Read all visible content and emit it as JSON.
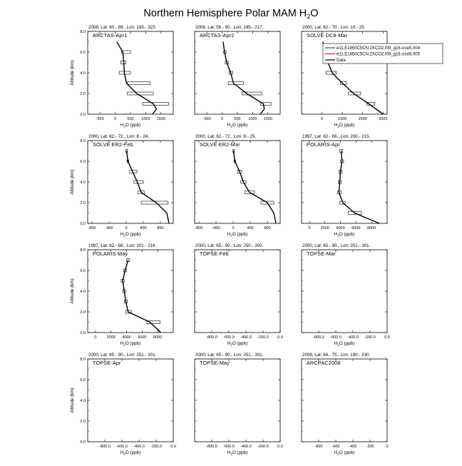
{
  "page": {
    "title_main": "Northern Hemisphere Polar MAM H",
    "title_sub": "2",
    "title_tail": "O"
  },
  "common": {
    "xlabel_pre": "H",
    "xlabel_sub": "2",
    "xlabel_post": "O (ppb)",
    "ylabel": "Altitude (km)",
    "yticks": [
      "0.0",
      "2.0",
      "4.0",
      "6.0",
      "8.0"
    ]
  },
  "legend": {
    "items": [
      {
        "label": "e11.E1850C5CN.2XCO2.f09_g16.cice5.004",
        "color": "#1f3fbf"
      },
      {
        "label": "e11.E1850C5CN.2XCO2.f09_g16.cice5.005",
        "color": "#d42020"
      },
      {
        "label": "Data",
        "color": "#000000"
      }
    ]
  },
  "chart_data": [
    {
      "type": "line",
      "header": "2008, Lat: 60.- 89., Lon: 193.- 323.",
      "campaign": "ARCTAS-Apr1",
      "xlim": [
        -900,
        1900
      ],
      "ylim": [
        0,
        8
      ],
      "xticks": [
        -500,
        0,
        500,
        1000,
        1500
      ],
      "xticklabels": [
        "-500",
        "0",
        "500",
        "1000",
        "1500"
      ],
      "profile": [
        [
          50,
          7
        ],
        [
          250,
          6
        ],
        [
          280,
          5
        ],
        [
          300,
          4
        ],
        [
          370,
          3
        ],
        [
          700,
          2
        ],
        [
          1250,
          1
        ],
        [
          1350,
          0.5
        ],
        [
          1220,
          0
        ]
      ],
      "boxes": [
        [
          200,
          500,
          6
        ],
        [
          180,
          350,
          5
        ],
        [
          130,
          500,
          4
        ],
        [
          400,
          1150,
          3
        ],
        [
          400,
          1250,
          2
        ],
        [
          900,
          1750,
          1
        ]
      ]
    },
    {
      "type": "line",
      "header": "2008, Lat: 58.- 90., Lon: 185.- 217.",
      "campaign": "ARCTAS-Apr2",
      "xlim": [
        -900,
        1900
      ],
      "ylim": [
        0,
        8
      ],
      "xticks": [
        -500,
        0,
        500,
        1000,
        1500
      ],
      "xticklabels": [
        "-500",
        "0",
        "500",
        "1000",
        "1500"
      ],
      "profile": [
        [
          30,
          7
        ],
        [
          80,
          6
        ],
        [
          150,
          5
        ],
        [
          280,
          4
        ],
        [
          370,
          3
        ],
        [
          800,
          2
        ],
        [
          1350,
          1
        ],
        [
          1380,
          0.5
        ],
        [
          1250,
          0
        ]
      ],
      "boxes": [
        [
          50,
          130,
          6
        ],
        [
          100,
          200,
          5
        ],
        [
          230,
          350,
          4
        ],
        [
          200,
          700,
          3
        ],
        [
          650,
          1300,
          2
        ],
        [
          1250,
          1600,
          1
        ]
      ]
    },
    {
      "type": "line",
      "header": "2000, Lat: 62.- 70., Lon: 10.- 25.",
      "campaign": "SOLVE DC8-Mar",
      "xlim": [
        -1000,
        3200
      ],
      "ylim": [
        0,
        8
      ],
      "xticks": [
        0,
        1000,
        2000,
        3000
      ],
      "xticklabels": [
        "0",
        "1000",
        "2000",
        "3000"
      ],
      "profile": [
        [
          50,
          7
        ],
        [
          100,
          6
        ],
        [
          300,
          5
        ],
        [
          500,
          4
        ],
        [
          1000,
          3
        ],
        [
          1550,
          2
        ],
        [
          2300,
          1
        ],
        [
          3000,
          0
        ]
      ],
      "boxes": [
        [
          200,
          700,
          4
        ],
        [
          900,
          1200,
          3
        ],
        [
          1300,
          1900,
          2
        ],
        [
          2200,
          2600,
          1
        ]
      ]
    },
    {
      "type": "line",
      "header": "2000, Lat: 62.- 72., Lon: 8.- 24.",
      "campaign": "SOLVE ER2-Feb",
      "xlim": [
        -900,
        1100
      ],
      "ylim": [
        0,
        8
      ],
      "xticks": [
        -800,
        -400,
        0,
        400,
        800
      ],
      "xticklabels": [
        "-800",
        "-400",
        "0",
        "400",
        "800"
      ],
      "profile": [
        [
          10,
          7
        ],
        [
          40,
          6
        ],
        [
          150,
          5
        ],
        [
          260,
          4
        ],
        [
          350,
          3
        ],
        [
          700,
          2
        ],
        [
          950,
          1
        ],
        [
          1000,
          0
        ]
      ],
      "boxes": [
        [
          -10,
          30,
          7
        ],
        [
          20,
          60,
          6
        ],
        [
          80,
          250,
          5
        ],
        [
          180,
          400,
          4
        ],
        [
          280,
          420,
          3
        ],
        [
          350,
          980,
          2
        ]
      ]
    },
    {
      "type": "line",
      "header": "2000, Lat: 62.- 72., Lon: 9.- 25.",
      "campaign": "SOLVE ER2-Mar",
      "xlim": [
        -900,
        1100
      ],
      "ylim": [
        0,
        8
      ],
      "xticks": [
        -800,
        -400,
        0,
        400,
        800
      ],
      "xticklabels": [
        "-800",
        "-400",
        "0",
        "400",
        "800"
      ],
      "profile": [
        [
          10,
          7
        ],
        [
          40,
          6
        ],
        [
          150,
          5
        ],
        [
          240,
          4
        ],
        [
          380,
          3
        ],
        [
          800,
          2
        ],
        [
          950,
          1
        ],
        [
          1000,
          0
        ]
      ],
      "boxes": [
        [
          -10,
          30,
          7
        ],
        [
          20,
          60,
          6
        ],
        [
          100,
          200,
          5
        ],
        [
          180,
          300,
          4
        ],
        [
          270,
          500,
          3
        ],
        [
          650,
          950,
          2
        ]
      ]
    },
    {
      "type": "line",
      "header": "1997, Lat: 62.- 66., Lon: 200.- 215.",
      "campaign": "POLARIS-Apr",
      "xlim": [
        -1000,
        10000
      ],
      "ylim": [
        0,
        8
      ],
      "xticks": [
        0,
        2000,
        4000,
        6000,
        8000
      ],
      "xticklabels": [
        "0",
        "2000",
        "4000",
        "6000",
        "8000"
      ],
      "profile": [
        [
          4100,
          7
        ],
        [
          4200,
          6
        ],
        [
          4000,
          5
        ],
        [
          3900,
          4
        ],
        [
          3800,
          3
        ],
        [
          4300,
          2
        ],
        [
          5800,
          1
        ],
        [
          9000,
          0
        ]
      ],
      "boxes": [
        [
          3900,
          4300,
          7
        ],
        [
          4000,
          4400,
          6
        ],
        [
          3800,
          4200,
          5
        ],
        [
          3700,
          4100,
          4
        ],
        [
          3600,
          4100,
          3
        ],
        [
          3900,
          4600,
          2
        ],
        [
          5000,
          6700,
          1
        ]
      ]
    },
    {
      "type": "line",
      "header": "1997, Lat: 62.- 66., Lon: 201.- 216.",
      "campaign": "POLARIS-May",
      "xlim": [
        -1000,
        10000
      ],
      "ylim": [
        0,
        8
      ],
      "xticks": [
        0,
        2000,
        4000,
        6000,
        8000
      ],
      "xticklabels": [
        "0",
        "2000",
        "4000",
        "6000",
        "8000"
      ],
      "profile": [
        [
          4200,
          7
        ],
        [
          3800,
          6
        ],
        [
          3500,
          5
        ],
        [
          3700,
          4
        ],
        [
          3900,
          3
        ],
        [
          4200,
          2
        ],
        [
          7000,
          1
        ],
        [
          8400,
          0
        ]
      ],
      "boxes": [
        [
          4000,
          4400,
          7
        ],
        [
          3600,
          4000,
          6
        ],
        [
          3300,
          3700,
          5
        ],
        [
          3500,
          3900,
          4
        ],
        [
          3700,
          4100,
          3
        ],
        [
          3900,
          4600,
          2
        ],
        [
          6600,
          8300,
          1
        ]
      ]
    },
    {
      "type": "line",
      "header": "2000, Lat: 65.- 90., Lon: 250.- 300.",
      "campaign": "TOPSE-Feb",
      "xlim": [
        -1000,
        0
      ],
      "ylim": [
        0,
        8
      ],
      "xticks": [
        -800,
        -600,
        -400,
        -200,
        0
      ],
      "xticklabels": [
        "-800.0",
        "-600.0",
        "-400.0",
        "-200.0",
        "0.0"
      ],
      "profile": [],
      "boxes": []
    },
    {
      "type": "line",
      "header": "2000, Lat: 65.- 90., Lon: 251.- 301.",
      "campaign": "TOPSE-Mar",
      "xlim": [
        -1000,
        0
      ],
      "ylim": [
        0,
        8
      ],
      "xticks": [
        -800,
        -600,
        -400,
        -200,
        0
      ],
      "xticklabels": [
        "-800.0",
        "-600.0",
        "-400.0",
        "-200.0",
        "0.0"
      ],
      "profile": [],
      "boxes": []
    },
    {
      "type": "line",
      "header": "2000, Lat: 65.- 90., Lon: 251.- 301.",
      "campaign": "TOPSE-Apr",
      "xlim": [
        -1000,
        0
      ],
      "ylim": [
        0,
        8
      ],
      "xticks": [
        -800,
        -600,
        -400,
        -200,
        0
      ],
      "xticklabels": [
        "-800.0",
        "-600.0",
        "-400.0",
        "-200.0",
        "0.0"
      ],
      "profile": [],
      "boxes": []
    },
    {
      "type": "line",
      "header": "2000, Lat: 65.- 90., Lon: 251.- 301.",
      "campaign": "TOPSE-May",
      "xlim": [
        -1000,
        0
      ],
      "ylim": [
        0,
        8
      ],
      "xticks": [
        -800,
        -600,
        -400,
        -200,
        0
      ],
      "xticklabels": [
        "-800.0",
        "-600.0",
        "-400.0",
        "-200.0",
        "0.0"
      ],
      "profile": [],
      "boxes": []
    },
    {
      "type": "line",
      "header": "2008, Lat: 64.- 75., Lon: 190.- 230.",
      "campaign": "ARCPAC2008",
      "xlim": [
        -1000,
        0
      ],
      "ylim": [
        0,
        8
      ],
      "xticks": [
        -800,
        -600,
        -400,
        -200,
        0
      ],
      "xticklabels": [
        "-800",
        "-600",
        "-400",
        "-200",
        "0"
      ],
      "profile": [],
      "boxes": []
    }
  ]
}
